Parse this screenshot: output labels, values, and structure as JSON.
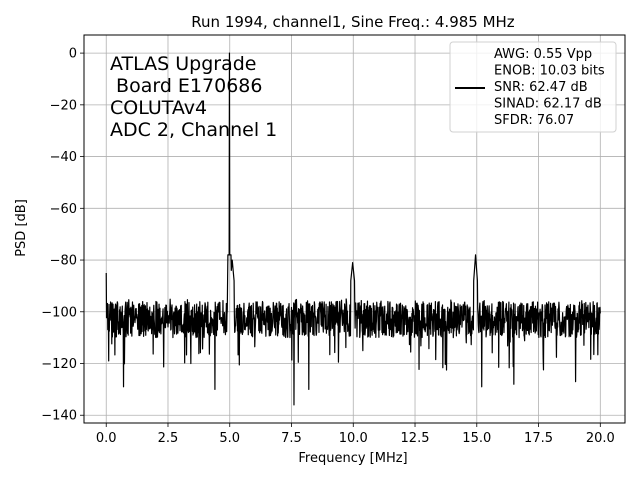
{
  "chart_data": {
    "type": "line",
    "title": "Run 1994, channel1, Sine Freq.: 4.985 MHz",
    "xlabel": "Frequency [MHz]",
    "ylabel": "PSD [dB]",
    "xlim": [
      -0.9,
      21.0
    ],
    "ylim": [
      -143,
      7
    ],
    "xticks": [
      0.0,
      2.5,
      5.0,
      7.5,
      10.0,
      12.5,
      15.0,
      17.5,
      20.0
    ],
    "xtick_labels": [
      "0.0",
      "2.5",
      "5.0",
      "7.5",
      "10.0",
      "12.5",
      "15.0",
      "17.5",
      "20.0"
    ],
    "yticks": [
      0,
      -20,
      -40,
      -60,
      -80,
      -100,
      -120,
      -140
    ],
    "ytick_labels": [
      "0",
      "−20",
      "−40",
      "−60",
      "−80",
      "−100",
      "−120",
      "−140"
    ],
    "grid": true,
    "legend_position": "top-right",
    "line_color": "#000000",
    "annotation_lines": [
      "ATLAS Upgrade",
      " Board E170686",
      "COLUTAv4",
      "ADC 2, Channel 1"
    ],
    "legend_lines": [
      "AWG: 0.55 Vpp",
      "ENOB: 10.03 bits",
      "SNR: 62.47 dB",
      "SINAD: 62.17 dB",
      "SFDR: 76.07"
    ],
    "series": [
      {
        "noise_floor": -103,
        "x_start": 0.0,
        "x_end": 20.0,
        "peaks": [
          {
            "x": 0.0,
            "y": -85
          },
          {
            "x": 0.1,
            "y": -119
          },
          {
            "x": 0.7,
            "y": -129
          },
          {
            "x": 4.4,
            "y": -130
          },
          {
            "x": 4.985,
            "y": 0
          },
          {
            "x": 5.1,
            "y": -80
          },
          {
            "x": 7.6,
            "y": -136
          },
          {
            "x": 8.2,
            "y": -130
          },
          {
            "x": 9.97,
            "y": -81
          },
          {
            "x": 14.95,
            "y": -78
          },
          {
            "x": 15.2,
            "y": -129
          },
          {
            "x": 16.5,
            "y": -128
          },
          {
            "x": 19.0,
            "y": -127
          }
        ]
      }
    ]
  }
}
